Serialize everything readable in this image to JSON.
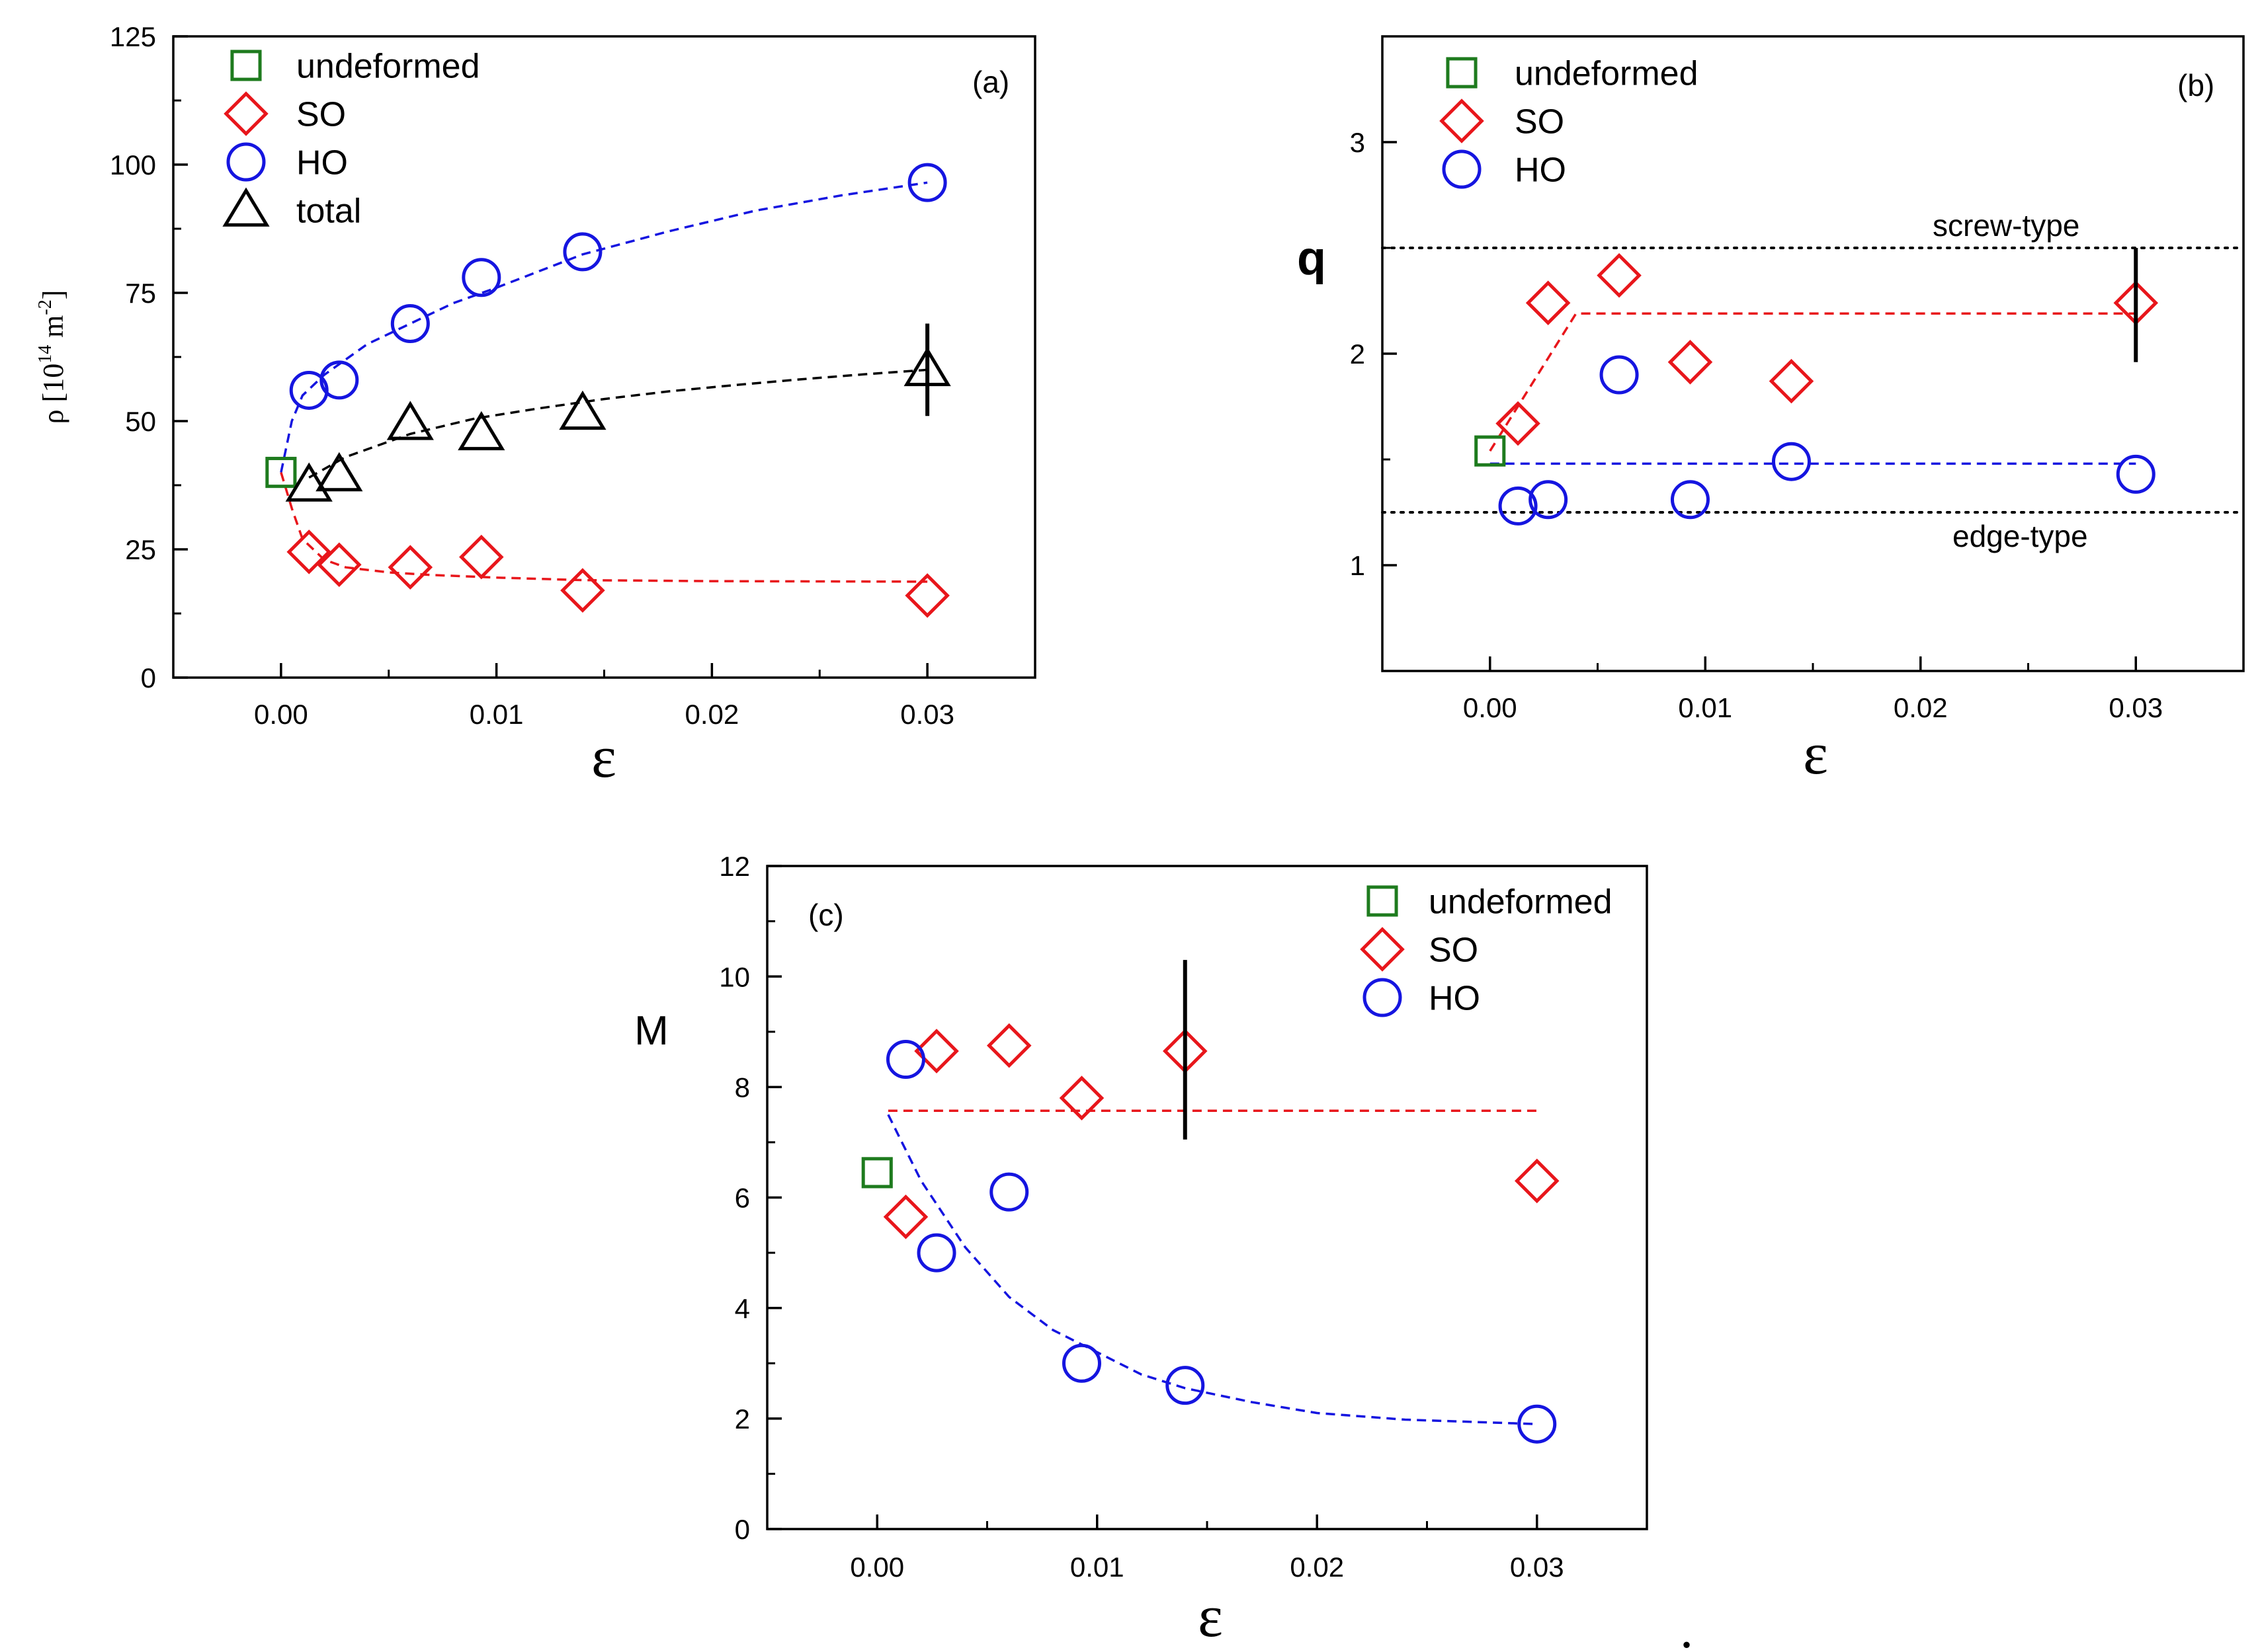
{
  "chart_data": [
    {
      "id": "a",
      "type": "scatter",
      "panel_label": "(a)",
      "xlabel": "ε",
      "ylabel": "ρ [10<sup>14</sup> m<sup>-2</sup>]",
      "ylabel_parts": {
        "main": "ρ [10",
        "sup1": "14",
        "mid": " m",
        "sup2": "-2",
        "end": "]"
      },
      "xlim": [
        -0.005,
        0.035
      ],
      "ylim": [
        0,
        125
      ],
      "xticks": [
        0.0,
        0.01,
        0.02,
        0.03
      ],
      "xtick_labels": [
        "0.00",
        "0.01",
        "0.02",
        "0.03"
      ],
      "yticks": [
        0,
        25,
        50,
        75,
        100,
        125
      ],
      "ytick_labels": [
        "0",
        "25",
        "50",
        "75",
        "100",
        "125"
      ],
      "legend": [
        {
          "label": "undeformed",
          "marker": "square",
          "color": "#1e7b1e"
        },
        {
          "label": "SO",
          "marker": "diamond",
          "color": "#e8161b"
        },
        {
          "label": "HO",
          "marker": "circle",
          "color": "#1515e0"
        },
        {
          "label": "total",
          "marker": "triangle",
          "color": "#000000"
        }
      ],
      "series": [
        {
          "name": "undeformed",
          "marker": "square",
          "color": "#1e7b1e",
          "x": [
            0.0
          ],
          "y": [
            40
          ]
        },
        {
          "name": "SO",
          "marker": "diamond",
          "color": "#e8161b",
          "x": [
            0.0013,
            0.0027,
            0.006,
            0.0093,
            0.014,
            0.03
          ],
          "y": [
            24.5,
            22,
            21.5,
            23.5,
            17,
            16
          ]
        },
        {
          "name": "HO",
          "marker": "circle",
          "color": "#1515e0",
          "x": [
            0.0013,
            0.0027,
            0.006,
            0.0093,
            0.014,
            0.03
          ],
          "y": [
            56,
            58,
            69,
            78,
            83,
            96.5
          ]
        },
        {
          "name": "total",
          "marker": "triangle",
          "color": "#000000",
          "x": [
            0.0013,
            0.0027,
            0.006,
            0.0093,
            0.014,
            0.03
          ],
          "y": [
            37.5,
            39.5,
            49.5,
            47.5,
            51.5,
            60
          ]
        }
      ],
      "fit_curves": [
        {
          "color": "#1515e0",
          "x": [
            0.0,
            0.0005,
            0.001,
            0.002,
            0.004,
            0.006,
            0.008,
            0.01,
            0.014,
            0.018,
            0.022,
            0.026,
            0.03
          ],
          "y": [
            40,
            50,
            55,
            59,
            65,
            69,
            73,
            76,
            82.5,
            87,
            91,
            94,
            96.5
          ]
        },
        {
          "color": "#000000",
          "x": [
            0.0013,
            0.003,
            0.006,
            0.009,
            0.012,
            0.015,
            0.018,
            0.021,
            0.024,
            0.027,
            0.03
          ],
          "y": [
            39,
            43,
            47.5,
            50.5,
            52.5,
            54.3,
            55.8,
            57,
            58.1,
            59.1,
            60
          ]
        },
        {
          "color": "#e8161b",
          "x": [
            0.0,
            0.0005,
            0.001,
            0.002,
            0.003,
            0.005,
            0.007,
            0.01,
            0.014,
            0.02,
            0.03
          ],
          "y": [
            40,
            33,
            27,
            23,
            21.5,
            20.5,
            20,
            19.5,
            19,
            18.8,
            18.7
          ]
        }
      ],
      "error_bars": [
        {
          "x": 0.03,
          "y_low": 51,
          "y_high": 69
        }
      ]
    },
    {
      "id": "b",
      "type": "scatter",
      "panel_label": "(b)",
      "xlabel": "ε",
      "ylabel": "q",
      "xlim": [
        -0.005,
        0.035
      ],
      "ylim": [
        0.5,
        3.5
      ],
      "xticks": [
        0.0,
        0.01,
        0.02,
        0.03
      ],
      "xtick_labels": [
        "0.00",
        "0.01",
        "0.02",
        "0.03"
      ],
      "yticks": [
        1,
        2,
        3
      ],
      "ytick_labels": [
        "1",
        "2",
        "3"
      ],
      "legend": [
        {
          "label": "undeformed",
          "marker": "square",
          "color": "#1e7b1e"
        },
        {
          "label": "SO",
          "marker": "diamond",
          "color": "#e8161b"
        },
        {
          "label": "HO",
          "marker": "circle",
          "color": "#1515e0"
        }
      ],
      "series": [
        {
          "name": "undeformed",
          "marker": "square",
          "color": "#1e7b1e",
          "x": [
            0.0
          ],
          "y": [
            1.54
          ]
        },
        {
          "name": "SO",
          "marker": "diamond",
          "color": "#e8161b",
          "x": [
            0.0013,
            0.0027,
            0.006,
            0.0093,
            0.014,
            0.03
          ],
          "y": [
            1.67,
            2.24,
            2.37,
            1.96,
            1.87,
            2.24
          ]
        },
        {
          "name": "HO",
          "marker": "circle",
          "color": "#1515e0",
          "x": [
            0.0013,
            0.0027,
            0.006,
            0.0093,
            0.014,
            0.03
          ],
          "y": [
            1.28,
            1.31,
            1.9,
            1.31,
            1.49,
            1.43
          ]
        }
      ],
      "fit_curves": [
        {
          "color": "#e8161b",
          "x": [
            0.0,
            0.004,
            0.03
          ],
          "y": [
            1.54,
            2.19,
            2.19
          ]
        },
        {
          "color": "#1515e0",
          "x": [
            0.0,
            0.03
          ],
          "y": [
            1.48,
            1.48
          ]
        }
      ],
      "reference_lines": [
        {
          "y": 2.5,
          "label": "screw-type"
        },
        {
          "y": 1.25,
          "label": "edge-type"
        }
      ],
      "error_bars": [
        {
          "x": 0.03,
          "y_low": 1.96,
          "y_high": 2.5
        }
      ]
    },
    {
      "id": "c",
      "type": "scatter",
      "panel_label": "(c)",
      "xlabel": "ε",
      "ylabel": "M",
      "xlim": [
        -0.005,
        0.035
      ],
      "ylim": [
        0,
        12
      ],
      "xticks": [
        0.0,
        0.01,
        0.02,
        0.03
      ],
      "xtick_labels": [
        "0.00",
        "0.01",
        "0.02",
        "0.03"
      ],
      "yticks": [
        0,
        2,
        4,
        6,
        8,
        10,
        12
      ],
      "ytick_labels": [
        "0",
        "2",
        "4",
        "6",
        "8",
        "10",
        "12"
      ],
      "legend": [
        {
          "label": "undeformed",
          "marker": "square",
          "color": "#1e7b1e"
        },
        {
          "label": "SO",
          "marker": "diamond",
          "color": "#e8161b"
        },
        {
          "label": "HO",
          "marker": "circle",
          "color": "#1515e0"
        }
      ],
      "series": [
        {
          "name": "undeformed",
          "marker": "square",
          "color": "#1e7b1e",
          "x": [
            0.0
          ],
          "y": [
            6.45
          ]
        },
        {
          "name": "SO",
          "marker": "diamond",
          "color": "#e8161b",
          "x": [
            0.0013,
            0.0027,
            0.006,
            0.0093,
            0.014,
            0.03
          ],
          "y": [
            5.65,
            8.65,
            8.75,
            7.8,
            8.65,
            6.3
          ]
        },
        {
          "name": "HO",
          "marker": "circle",
          "color": "#1515e0",
          "x": [
            0.0013,
            0.0027,
            0.006,
            0.0093,
            0.014,
            0.03
          ],
          "y": [
            8.5,
            5.0,
            6.1,
            3.0,
            2.6,
            1.9
          ]
        }
      ],
      "fit_curves": [
        {
          "color": "#e8161b",
          "x": [
            0.0005,
            0.03
          ],
          "y": [
            7.57,
            7.57
          ]
        },
        {
          "color": "#1515e0",
          "x": [
            0.0005,
            0.001,
            0.002,
            0.004,
            0.006,
            0.008,
            0.01,
            0.012,
            0.014,
            0.017,
            0.02,
            0.024,
            0.03
          ],
          "y": [
            7.5,
            7.1,
            6.3,
            5.1,
            4.2,
            3.6,
            3.2,
            2.8,
            2.55,
            2.3,
            2.1,
            1.98,
            1.9
          ]
        }
      ],
      "error_bars": [
        {
          "x": 0.014,
          "y_low": 7.05,
          "y_high": 10.3
        }
      ]
    }
  ]
}
